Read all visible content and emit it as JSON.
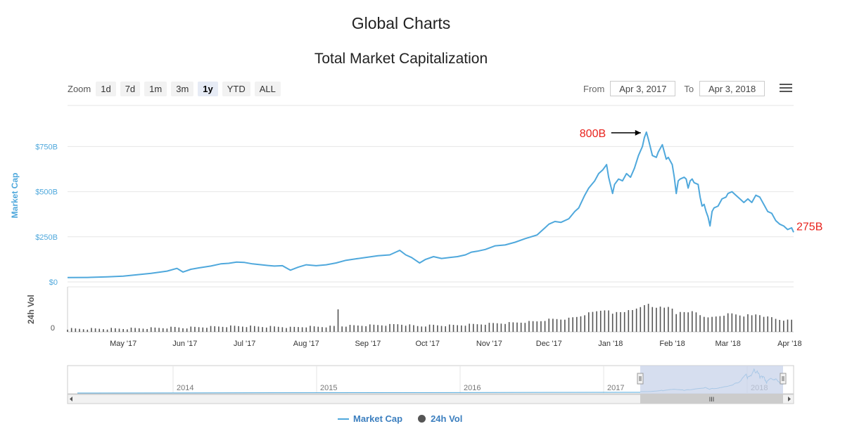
{
  "page": {
    "title": "Global Charts"
  },
  "chart_data": {
    "type": "line",
    "title": "Total Market Capitalization",
    "ylabel": "Market Cap",
    "vol_ylabel": "24h Vol",
    "y_ticks": [
      "$0",
      "$250B",
      "$500B",
      "$750B"
    ],
    "y_tick_values": [
      0,
      250,
      500,
      750
    ],
    "vol_tick": "0",
    "ylim": [
      0,
      850
    ],
    "x_ticks": [
      "May '17",
      "Jun '17",
      "Jul '17",
      "Aug '17",
      "Sep '17",
      "Oct '17",
      "Nov '17",
      "Dec '17",
      "Jan '18",
      "Feb '18",
      "Mar '18",
      "Apr '18"
    ],
    "x_tick_days": [
      28,
      59,
      89,
      120,
      151,
      181,
      212,
      242,
      273,
      304,
      332,
      363
    ],
    "x_range_days": [
      0,
      365
    ],
    "series": [
      {
        "name": "Market Cap",
        "unit": "B USD",
        "points": [
          [
            0,
            24
          ],
          [
            10,
            25
          ],
          [
            20,
            28
          ],
          [
            28,
            32
          ],
          [
            35,
            40
          ],
          [
            42,
            48
          ],
          [
            50,
            60
          ],
          [
            55,
            75
          ],
          [
            58,
            55
          ],
          [
            62,
            70
          ],
          [
            66,
            78
          ],
          [
            72,
            88
          ],
          [
            77,
            100
          ],
          [
            81,
            103
          ],
          [
            85,
            110
          ],
          [
            89,
            108
          ],
          [
            93,
            100
          ],
          [
            100,
            92
          ],
          [
            104,
            88
          ],
          [
            108,
            90
          ],
          [
            112,
            65
          ],
          [
            116,
            82
          ],
          [
            120,
            95
          ],
          [
            125,
            90
          ],
          [
            130,
            95
          ],
          [
            135,
            105
          ],
          [
            140,
            120
          ],
          [
            145,
            128
          ],
          [
            151,
            137
          ],
          [
            156,
            145
          ],
          [
            162,
            150
          ],
          [
            165,
            165
          ],
          [
            167,
            175
          ],
          [
            170,
            150
          ],
          [
            173,
            135
          ],
          [
            175,
            120
          ],
          [
            177,
            105
          ],
          [
            180,
            125
          ],
          [
            184,
            140
          ],
          [
            188,
            130
          ],
          [
            192,
            135
          ],
          [
            196,
            140
          ],
          [
            200,
            150
          ],
          [
            203,
            165
          ],
          [
            206,
            170
          ],
          [
            210,
            180
          ],
          [
            215,
            200
          ],
          [
            220,
            205
          ],
          [
            225,
            220
          ],
          [
            230,
            240
          ],
          [
            236,
            260
          ],
          [
            240,
            300
          ],
          [
            242,
            320
          ],
          [
            245,
            335
          ],
          [
            248,
            330
          ],
          [
            252,
            350
          ],
          [
            255,
            390
          ],
          [
            257,
            410
          ],
          [
            260,
            480
          ],
          [
            262,
            520
          ],
          [
            265,
            560
          ],
          [
            267,
            600
          ],
          [
            269,
            620
          ],
          [
            271,
            650
          ],
          [
            272,
            580
          ],
          [
            274,
            490
          ],
          [
            275,
            540
          ],
          [
            277,
            570
          ],
          [
            279,
            560
          ],
          [
            281,
            600
          ],
          [
            283,
            580
          ],
          [
            285,
            630
          ],
          [
            287,
            700
          ],
          [
            289,
            750
          ],
          [
            290,
            800
          ],
          [
            291,
            830
          ],
          [
            292,
            790
          ],
          [
            294,
            700
          ],
          [
            296,
            690
          ],
          [
            297,
            720
          ],
          [
            299,
            760
          ],
          [
            301,
            680
          ],
          [
            302,
            690
          ],
          [
            304,
            650
          ],
          [
            305,
            580
          ],
          [
            306,
            490
          ],
          [
            307,
            560
          ],
          [
            308,
            570
          ],
          [
            310,
            580
          ],
          [
            311,
            570
          ],
          [
            312,
            520
          ],
          [
            313,
            560
          ],
          [
            314,
            570
          ],
          [
            315,
            550
          ],
          [
            317,
            540
          ],
          [
            318,
            470
          ],
          [
            319,
            420
          ],
          [
            320,
            430
          ],
          [
            321,
            390
          ],
          [
            322,
            360
          ],
          [
            323,
            310
          ],
          [
            324,
            390
          ],
          [
            325,
            410
          ],
          [
            327,
            420
          ],
          [
            329,
            460
          ],
          [
            331,
            470
          ],
          [
            332,
            490
          ],
          [
            334,
            500
          ],
          [
            336,
            480
          ],
          [
            338,
            460
          ],
          [
            340,
            440
          ],
          [
            342,
            460
          ],
          [
            344,
            440
          ],
          [
            346,
            480
          ],
          [
            348,
            470
          ],
          [
            350,
            430
          ],
          [
            352,
            390
          ],
          [
            354,
            380
          ],
          [
            356,
            340
          ],
          [
            358,
            320
          ],
          [
            360,
            310
          ],
          [
            362,
            290
          ],
          [
            364,
            300
          ],
          [
            365,
            275
          ]
        ]
      },
      {
        "name": "24h Vol"
      }
    ],
    "annotations": [
      {
        "text": "800B",
        "color": "#e8231d"
      },
      {
        "text": "275B",
        "color": "#e8231d"
      }
    ],
    "navigator": {
      "years": [
        "2014",
        "2015",
        "2016",
        "2017",
        "2018"
      ],
      "scroll_grip": "III"
    }
  },
  "toolbar": {
    "zoom_label": "Zoom",
    "zoom_buttons": [
      "1d",
      "7d",
      "1m",
      "3m",
      "1y",
      "YTD",
      "ALL"
    ],
    "zoom_active": "1y",
    "from_label": "From",
    "from_value": "Apr 3, 2017",
    "to_label": "To",
    "to_value": "Apr 3, 2018"
  },
  "legend": {
    "items": [
      "Market Cap",
      "24h Vol"
    ]
  },
  "colors": {
    "line": "#4fa8dc",
    "bars": "#555555",
    "annotation": "#e8231d",
    "navigator_mask": "#c8d3ea",
    "axis_label": "#4fa8dc"
  }
}
